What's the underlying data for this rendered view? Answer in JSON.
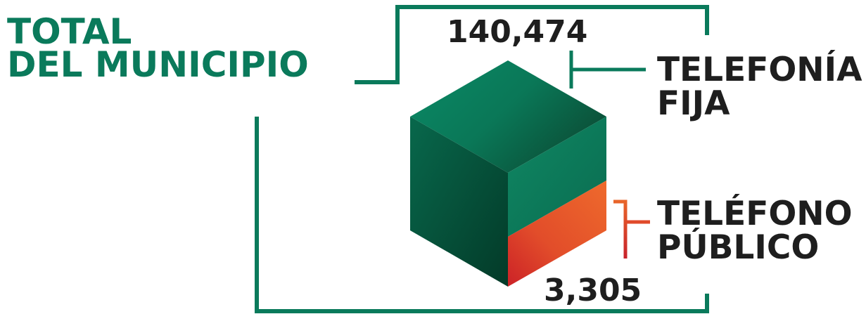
{
  "title": {
    "line1": "TOTAL",
    "line2": "DEL MUNICIPIO"
  },
  "total_value": "140,474",
  "fixed_phone": {
    "line1": "TELEFONÍA",
    "line2": "FIJA"
  },
  "public_phone": {
    "line1": "TELÉFONO",
    "line2": "PÚBLICO",
    "value": "3,305"
  },
  "colors": {
    "green_dark": "#06402f",
    "green_mid": "#0a7a5b",
    "green_light": "#0f8c68",
    "orange": "#e8652a",
    "red": "#c8222b",
    "text": "#1e1e1e"
  }
}
